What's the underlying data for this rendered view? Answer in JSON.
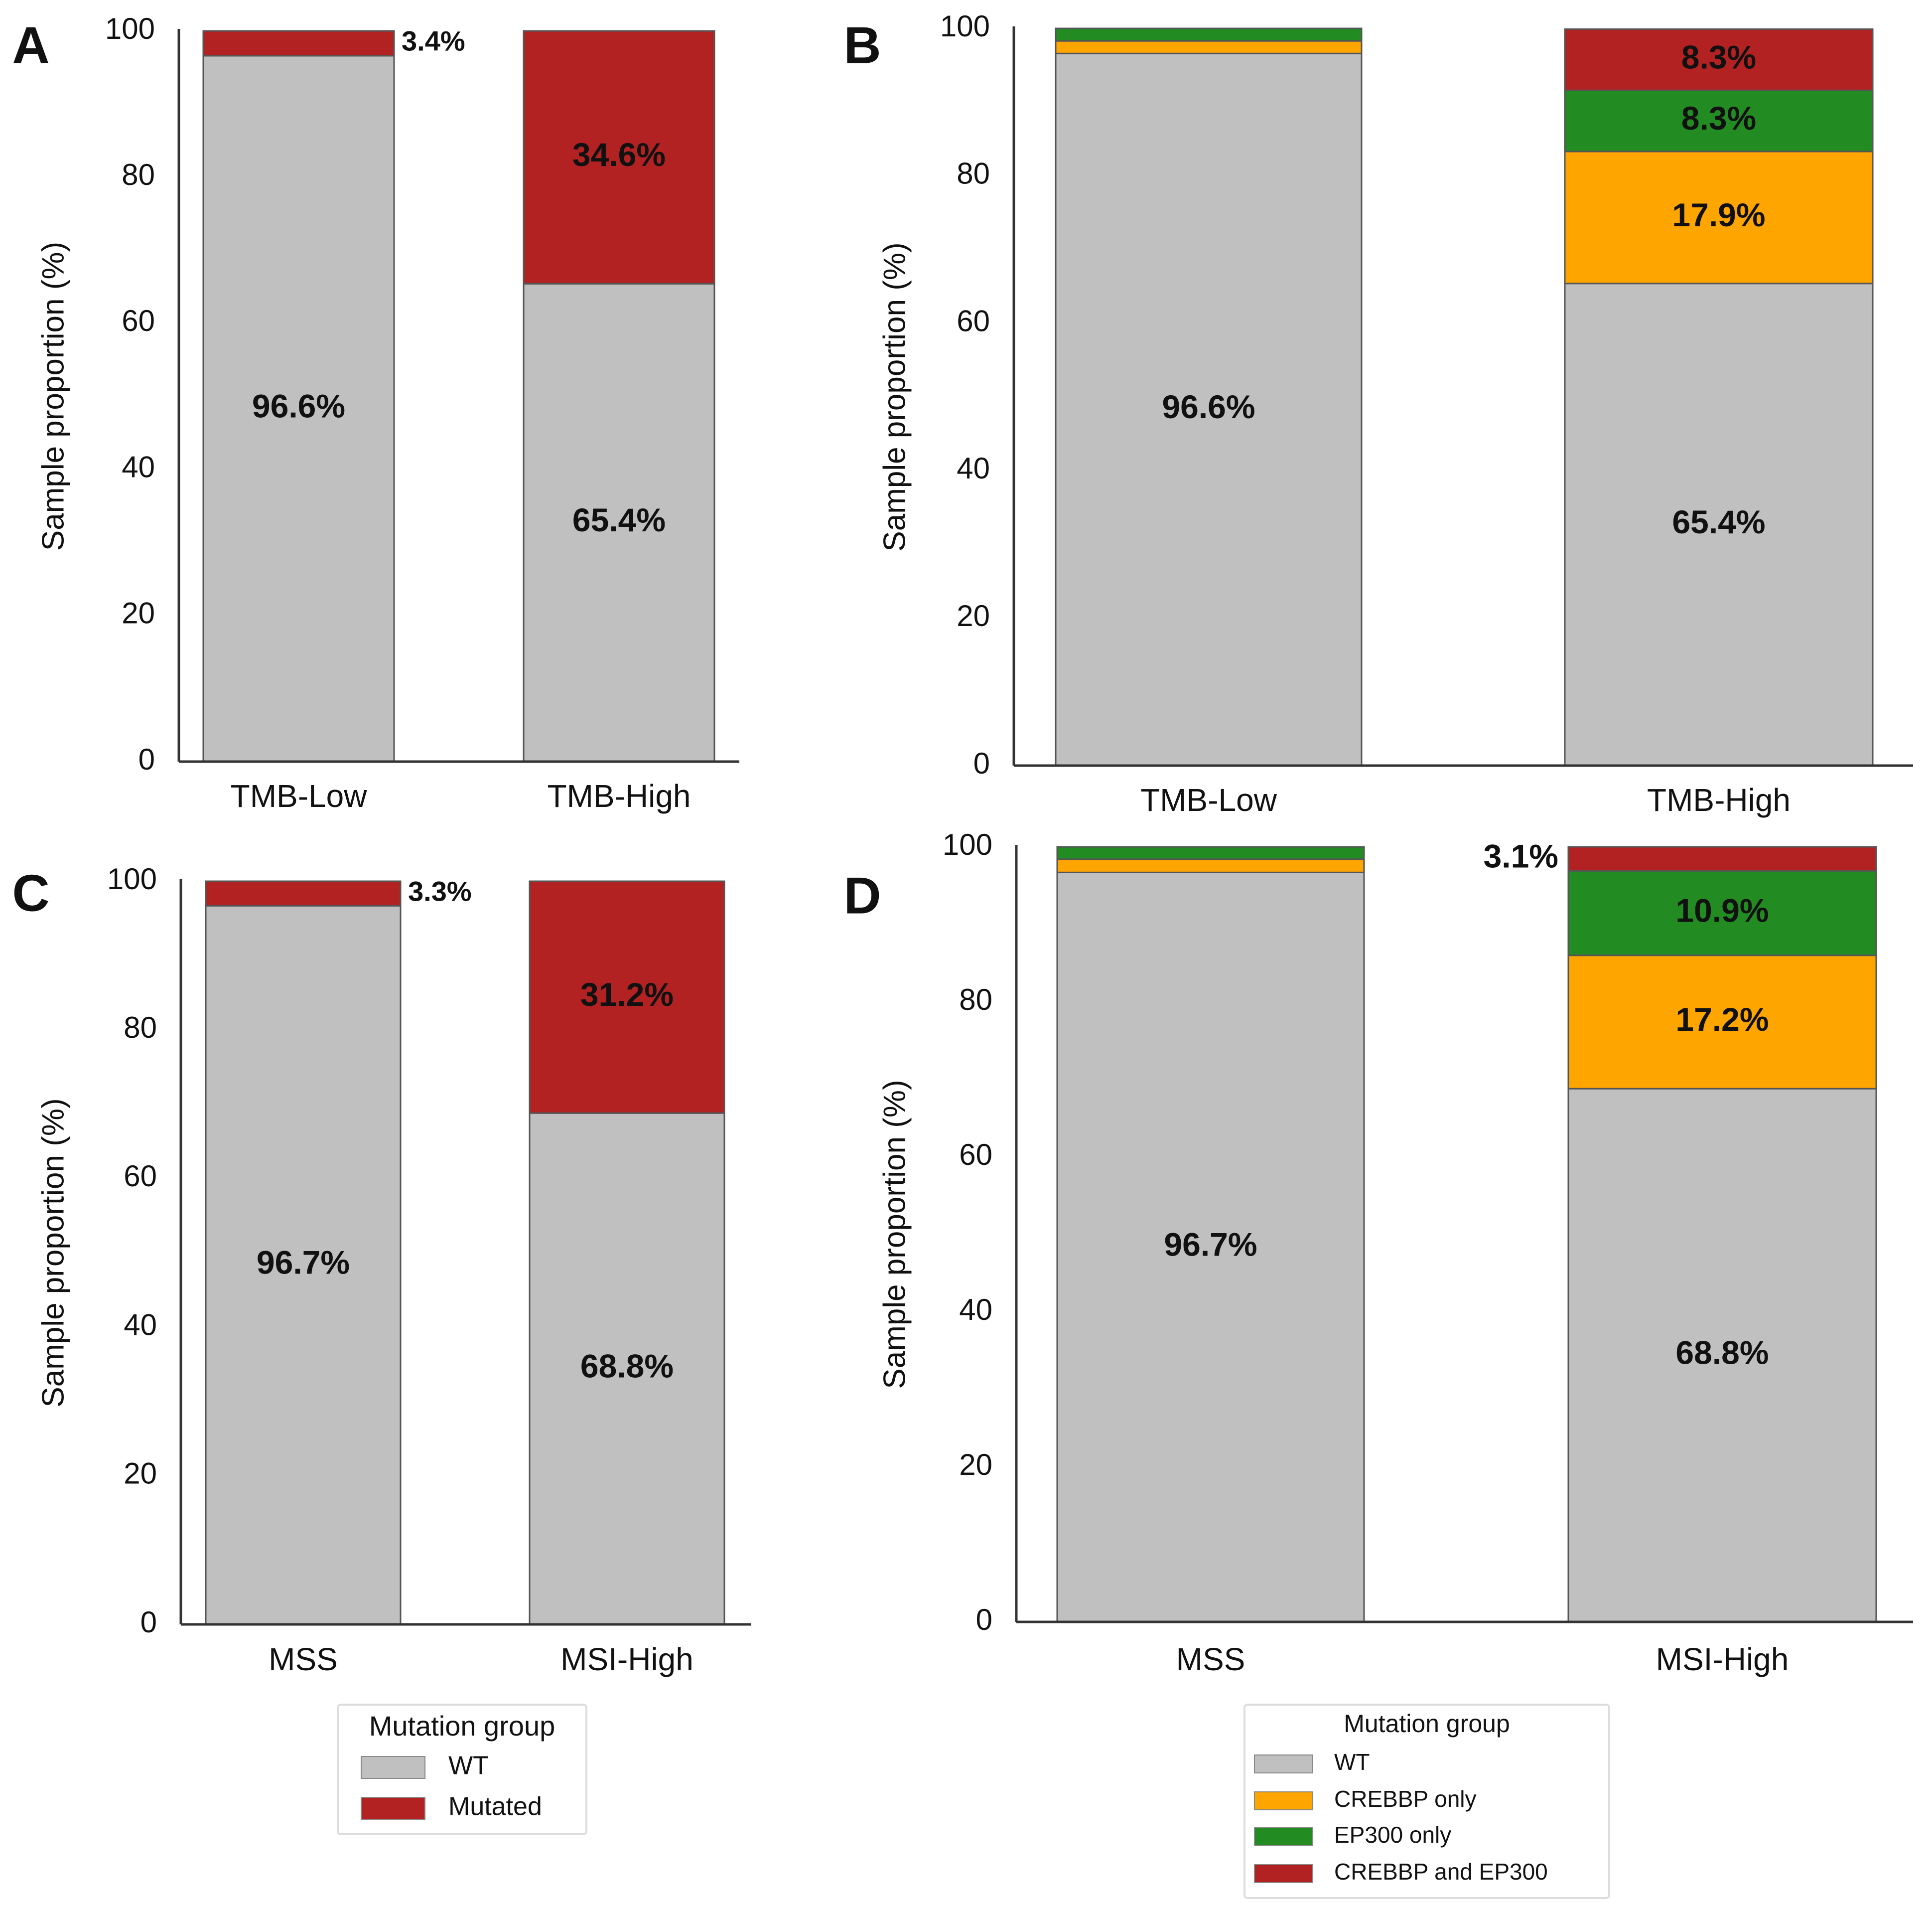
{
  "chart_data": [
    {
      "type": "bar",
      "stacked": true,
      "label": "A",
      "ylabel": "Sample proportion (%)",
      "categories": [
        "TMB-Low",
        "TMB-High"
      ],
      "series": [
        {
          "color": "#c0c0c0",
          "values": [
            96.6,
            65.4
          ],
          "value_labels": [
            "96.6%",
            "65.4%"
          ]
        },
        {
          "color": "#b22222",
          "values": [
            3.4,
            34.6
          ],
          "value_labels": [
            "3.4%",
            "34.6%"
          ]
        }
      ],
      "ylim": [
        0,
        100
      ],
      "yticks": [
        0,
        20,
        40,
        60,
        80,
        100
      ],
      "grid": false
    },
    {
      "type": "bar",
      "stacked": true,
      "label": "B",
      "ylabel": "Sample proportion (%)",
      "categories": [
        "TMB-Low",
        "TMB-High"
      ],
      "series": [
        {
          "color": "#c0c0c0",
          "values": [
            96.6,
            65.4
          ],
          "value_labels": [
            "96.6%",
            "65.4%"
          ]
        },
        {
          "color": "#ffa500",
          "values": [
            1.7,
            17.9
          ],
          "value_labels": [
            null,
            "17.9%"
          ]
        },
        {
          "color": "#228b22",
          "values": [
            1.7,
            8.3
          ],
          "value_labels": [
            null,
            "8.3%"
          ]
        },
        {
          "color": "#b22222",
          "values": [
            0,
            8.3
          ],
          "value_labels": [
            null,
            "8.3%"
          ]
        }
      ],
      "ylim": [
        0,
        100
      ],
      "yticks": [
        0,
        20,
        40,
        60,
        80,
        100
      ],
      "grid": false
    },
    {
      "type": "bar",
      "stacked": true,
      "label": "C",
      "ylabel": "Sample proportion (%)",
      "categories": [
        "MSS",
        "MSI-High"
      ],
      "series": [
        {
          "name": "WT",
          "color": "#c0c0c0",
          "values": [
            96.7,
            68.8
          ],
          "value_labels": [
            "96.7%",
            "68.8%"
          ]
        },
        {
          "name": "Mutated",
          "color": "#b22222",
          "values": [
            3.3,
            31.2
          ],
          "value_labels": [
            "3.3%",
            "31.2%"
          ]
        }
      ],
      "ylim": [
        0,
        100
      ],
      "yticks": [
        0,
        20,
        40,
        60,
        80,
        100
      ],
      "grid": false,
      "legend": "below",
      "legend_title": "Mutation group"
    },
    {
      "type": "bar",
      "stacked": true,
      "label": "D",
      "ylabel": "Sample proportion (%)",
      "categories": [
        "MSS",
        "MSI-High"
      ],
      "series": [
        {
          "name": "WT",
          "color": "#c0c0c0",
          "values": [
            96.7,
            68.8
          ],
          "value_labels": [
            "96.7%",
            "68.8%"
          ]
        },
        {
          "name": "CREBBP only",
          "color": "#ffa500",
          "values": [
            1.7,
            17.2
          ],
          "value_labels": [
            null,
            "17.2%"
          ]
        },
        {
          "name": "EP300 only",
          "color": "#228b22",
          "values": [
            1.6,
            10.9
          ],
          "value_labels": [
            null,
            "10.9%"
          ]
        },
        {
          "name": "CREBBP and EP300",
          "color": "#b22222",
          "values": [
            0,
            3.1
          ],
          "value_labels": [
            null,
            "3.1%"
          ]
        }
      ],
      "ylim": [
        0,
        100
      ],
      "yticks": [
        0,
        20,
        40,
        60,
        80,
        100
      ],
      "grid": false,
      "legend": "below",
      "legend_title": "Mutation group"
    }
  ]
}
